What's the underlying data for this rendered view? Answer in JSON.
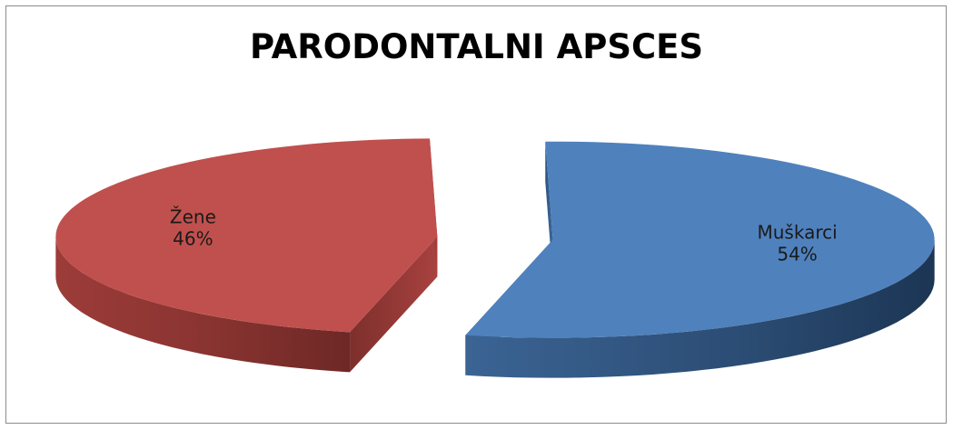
{
  "chart_data": {
    "type": "pie",
    "title": "PARODONTALNI APSCES",
    "slices": [
      {
        "name": "Žene",
        "value": 46,
        "label": "46%",
        "color": "#c0504d"
      },
      {
        "name": "Muškarci",
        "value": 54,
        "label": "54%",
        "color": "#4f81bd"
      }
    ],
    "three_d": true,
    "exploded": true,
    "legend": "none"
  }
}
